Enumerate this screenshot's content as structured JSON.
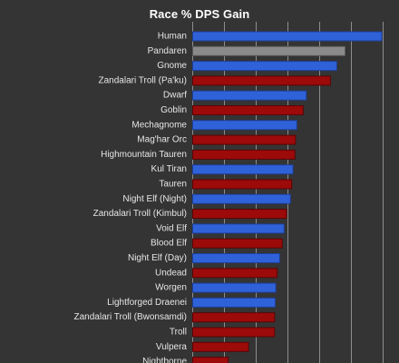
{
  "chart_data": {
    "type": "bar",
    "orientation": "horizontal",
    "title": "Race % DPS Gain",
    "xlim": [
      0,
      3
    ],
    "grid": true,
    "categories": [
      "Human",
      "Pandaren",
      "Gnome",
      "Zandalari Troll (Pa'ku)",
      "Dwarf",
      "Goblin",
      "Mechagnome",
      "Mag'har Orc",
      "Highmountain Tauren",
      "Kul Tiran",
      "Tauren",
      "Night Elf (Night)",
      "Zandalari Troll (Kimbul)",
      "Void Elf",
      "Blood Elf",
      "Night Elf (Day)",
      "Undead",
      "Worgen",
      "Lightforged Draenei",
      "Zandalari Troll (Bwonsamdi)",
      "Troll",
      "Vulpera",
      "Nightborne"
    ],
    "values": [
      2.98,
      2.4,
      2.27,
      2.17,
      1.79,
      1.74,
      1.64,
      1.62,
      1.61,
      1.58,
      1.56,
      1.54,
      1.48,
      1.44,
      1.41,
      1.37,
      1.33,
      1.31,
      1.3,
      1.29,
      1.29,
      0.88,
      0.56
    ],
    "faction": [
      "alliance",
      "neutral",
      "alliance",
      "horde",
      "alliance",
      "horde",
      "alliance",
      "horde",
      "horde",
      "alliance",
      "horde",
      "alliance",
      "horde",
      "alliance",
      "horde",
      "alliance",
      "horde",
      "alliance",
      "alliance",
      "horde",
      "horde",
      "horde",
      "horde"
    ],
    "colors": {
      "alliance": "#2f62d9",
      "alliance_border": "#1f3f99",
      "horde": "#9c0a0a",
      "horde_border": "#5a0505",
      "neutral": "#8a8a8a",
      "neutral_border": "#5a5a5a",
      "label": "#e6e6e6",
      "grid": "#8d8d8d",
      "background": "#343434"
    }
  }
}
